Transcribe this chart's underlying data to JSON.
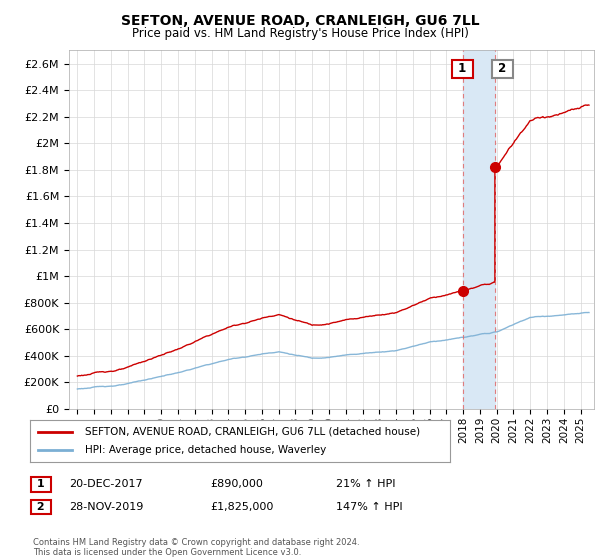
{
  "title": "SEFTON, AVENUE ROAD, CRANLEIGH, GU6 7LL",
  "subtitle": "Price paid vs. HM Land Registry's House Price Index (HPI)",
  "ylim": [
    0,
    2700000
  ],
  "yticks": [
    0,
    200000,
    400000,
    600000,
    800000,
    1000000,
    1200000,
    1400000,
    1600000,
    1800000,
    2000000,
    2200000,
    2400000,
    2600000
  ],
  "ytick_labels": [
    "£0",
    "£200K",
    "£400K",
    "£600K",
    "£800K",
    "£1M",
    "£1.2M",
    "£1.4M",
    "£1.6M",
    "£1.8M",
    "£2M",
    "£2.2M",
    "£2.4M",
    "£2.6M"
  ],
  "hpi_color": "#7bafd4",
  "price_color": "#cc0000",
  "bg_color": "#ffffff",
  "grid_color": "#d8d8d8",
  "t1_year": 2017.97,
  "t2_year": 2019.92,
  "t1_price": 890000,
  "t2_price": 1825000,
  "shaded_color": "#d9e8f5",
  "dashed_color": "#e07070",
  "annotation1_box_color": "#cc0000",
  "annotation2_box_color": "#888888",
  "legend_line1": "SEFTON, AVENUE ROAD, CRANLEIGH, GU6 7LL (detached house)",
  "legend_line2": "HPI: Average price, detached house, Waverley",
  "t1_label": "1",
  "t1_date": "20-DEC-2017",
  "t1_price_str": "£890,000",
  "t1_change": "21% ↑ HPI",
  "t2_label": "2",
  "t2_date": "28-NOV-2019",
  "t2_price_str": "£1,825,000",
  "t2_change": "147% ↑ HPI",
  "footer": "Contains HM Land Registry data © Crown copyright and database right 2024.\nThis data is licensed under the Open Government Licence v3.0."
}
